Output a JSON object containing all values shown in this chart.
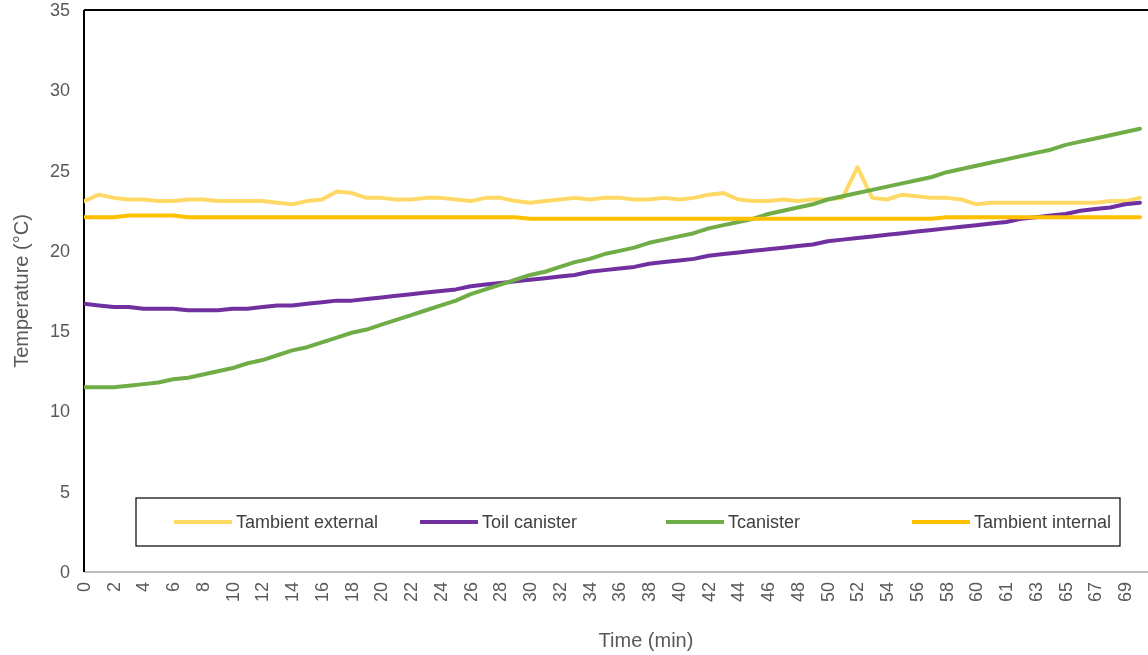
{
  "chart_data": {
    "type": "line",
    "xlabel": "Time (min)",
    "ylabel": "Temperature (°C)",
    "ylim": [
      0,
      35
    ],
    "yticks": [
      0,
      5,
      10,
      15,
      20,
      25,
      30,
      35
    ],
    "categories": [
      "0",
      null,
      "2",
      null,
      "4",
      null,
      "6",
      null,
      "8",
      null,
      "10",
      null,
      "12",
      null,
      "14",
      null,
      "16",
      null,
      "18",
      null,
      "20",
      null,
      "22",
      null,
      "24",
      null,
      "26",
      null,
      "28",
      null,
      "30",
      null,
      "32",
      null,
      "34",
      null,
      "36",
      null,
      "38",
      null,
      "40",
      null,
      "42",
      null,
      "44",
      null,
      "46",
      null,
      "48",
      null,
      "50",
      null,
      "52",
      null,
      "54",
      null,
      "56",
      null,
      "58",
      null,
      "60",
      null,
      "61",
      null,
      "63",
      null,
      "65",
      null,
      "67",
      null,
      "69",
      null
    ],
    "grid": false,
    "legend": "bottom",
    "marker": "none",
    "line_style": "solid",
    "series": [
      {
        "name": "Tambient external",
        "color": "#ffd966",
        "values": [
          23.1,
          23.5,
          23.3,
          23.2,
          23.2,
          23.1,
          23.1,
          23.2,
          23.2,
          23.1,
          23.1,
          23.1,
          23.1,
          23.0,
          22.9,
          23.1,
          23.2,
          23.7,
          23.6,
          23.3,
          23.3,
          23.2,
          23.2,
          23.3,
          23.3,
          23.2,
          23.1,
          23.3,
          23.3,
          23.1,
          23.0,
          23.1,
          23.2,
          23.3,
          23.2,
          23.3,
          23.3,
          23.2,
          23.2,
          23.3,
          23.2,
          23.3,
          23.5,
          23.6,
          23.2,
          23.1,
          23.1,
          23.2,
          23.1,
          23.2,
          23.2,
          23.3,
          25.2,
          23.3,
          23.2,
          23.5,
          23.4,
          23.3,
          23.3,
          23.2,
          22.9,
          23.0,
          23.0,
          23.0,
          23.0,
          23.0,
          23.0,
          23.0,
          23.0,
          23.1,
          23.1,
          23.3
        ]
      },
      {
        "name": "Toil canister",
        "color": "#7030a0",
        "values": [
          16.7,
          16.6,
          16.5,
          16.5,
          16.4,
          16.4,
          16.4,
          16.3,
          16.3,
          16.3,
          16.4,
          16.4,
          16.5,
          16.6,
          16.6,
          16.7,
          16.8,
          16.9,
          16.9,
          17.0,
          17.1,
          17.2,
          17.3,
          17.4,
          17.5,
          17.6,
          17.8,
          17.9,
          18.0,
          18.1,
          18.2,
          18.3,
          18.4,
          18.5,
          18.7,
          18.8,
          18.9,
          19.0,
          19.2,
          19.3,
          19.4,
          19.5,
          19.7,
          19.8,
          19.9,
          20.0,
          20.1,
          20.2,
          20.3,
          20.4,
          20.6,
          20.7,
          20.8,
          20.9,
          21.0,
          21.1,
          21.2,
          21.3,
          21.4,
          21.5,
          21.6,
          21.7,
          21.8,
          22.0,
          22.1,
          22.2,
          22.3,
          22.5,
          22.6,
          22.7,
          22.9,
          23.0
        ]
      },
      {
        "name": "Tcanister",
        "color": "#70ad47",
        "values": [
          11.5,
          11.5,
          11.5,
          11.6,
          11.7,
          11.8,
          12.0,
          12.1,
          12.3,
          12.5,
          12.7,
          13.0,
          13.2,
          13.5,
          13.8,
          14.0,
          14.3,
          14.6,
          14.9,
          15.1,
          15.4,
          15.7,
          16.0,
          16.3,
          16.6,
          16.9,
          17.3,
          17.6,
          17.9,
          18.2,
          18.5,
          18.7,
          19.0,
          19.3,
          19.5,
          19.8,
          20.0,
          20.2,
          20.5,
          20.7,
          20.9,
          21.1,
          21.4,
          21.6,
          21.8,
          22.0,
          22.3,
          22.5,
          22.7,
          22.9,
          23.2,
          23.4,
          23.6,
          23.8,
          24.0,
          24.2,
          24.4,
          24.6,
          24.9,
          25.1,
          25.3,
          25.5,
          25.7,
          25.9,
          26.1,
          26.3,
          26.6,
          26.8,
          27.0,
          27.2,
          27.4,
          27.6
        ]
      },
      {
        "name": "Tambient internal",
        "color": "#ffc000",
        "values": [
          22.1,
          22.1,
          22.1,
          22.2,
          22.2,
          22.2,
          22.2,
          22.1,
          22.1,
          22.1,
          22.1,
          22.1,
          22.1,
          22.1,
          22.1,
          22.1,
          22.1,
          22.1,
          22.1,
          22.1,
          22.1,
          22.1,
          22.1,
          22.1,
          22.1,
          22.1,
          22.1,
          22.1,
          22.1,
          22.1,
          22.0,
          22.0,
          22.0,
          22.0,
          22.0,
          22.0,
          22.0,
          22.0,
          22.0,
          22.0,
          22.0,
          22.0,
          22.0,
          22.0,
          22.0,
          22.0,
          22.0,
          22.0,
          22.0,
          22.0,
          22.0,
          22.0,
          22.0,
          22.0,
          22.0,
          22.0,
          22.0,
          22.0,
          22.1,
          22.1,
          22.1,
          22.1,
          22.1,
          22.1,
          22.1,
          22.1,
          22.1,
          22.1,
          22.1,
          22.1,
          22.1,
          22.1
        ]
      }
    ]
  }
}
